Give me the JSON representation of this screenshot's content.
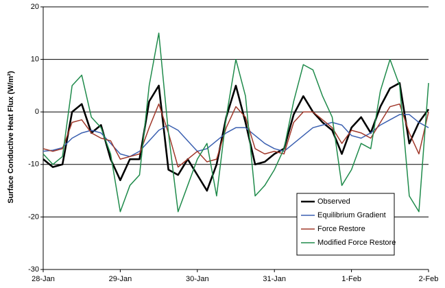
{
  "chart_data": {
    "type": "line",
    "y_label": "Surface Conductive Heat Flux (W/m²)",
    "x": [
      0,
      0.125,
      0.25,
      0.375,
      0.5,
      0.625,
      0.75,
      0.875,
      1,
      1.125,
      1.25,
      1.375,
      1.5,
      1.625,
      1.75,
      1.875,
      2,
      2.125,
      2.25,
      2.375,
      2.5,
      2.625,
      2.75,
      2.875,
      3,
      3.125,
      3.25,
      3.375,
      3.5,
      3.625,
      3.75,
      3.875,
      4,
      4.125,
      4.25,
      4.375,
      4.5,
      4.625,
      4.75,
      4.875,
      5
    ],
    "xlim": [
      0,
      5
    ],
    "xticks": [
      {
        "value": 0,
        "label": "28-Jan"
      },
      {
        "value": 1,
        "label": "29-Jan"
      },
      {
        "value": 2,
        "label": "30-Jan"
      },
      {
        "value": 3,
        "label": "31-Jan"
      },
      {
        "value": 4,
        "label": "1-Feb"
      },
      {
        "value": 5,
        "label": "2-Feb"
      }
    ],
    "ylim": [
      -30,
      20
    ],
    "yticks": [
      -30,
      -20,
      -10,
      0,
      10,
      20
    ],
    "grid": true,
    "legend": "lower right",
    "series": [
      {
        "name": "Observed",
        "color": "#000000",
        "width": 2.6,
        "values": [
          -9,
          -10.5,
          -10,
          0,
          1.5,
          -4,
          -2.5,
          -9,
          -13,
          -9,
          -9,
          2,
          5,
          -11,
          -12,
          -9,
          -12,
          -15,
          -10,
          -1,
          5,
          -2,
          -10,
          -9.5,
          -8,
          -7,
          -0.5,
          3,
          0,
          -2,
          -3.5,
          -8,
          -3,
          -1,
          -4,
          1,
          4.5,
          5.5,
          -6,
          -2,
          0.5
        ]
      },
      {
        "name": "Equilibrium Gradient",
        "color": "#3a5fb0",
        "width": 1.5,
        "values": [
          -7.5,
          -7.3,
          -6.8,
          -5,
          -4,
          -3.5,
          -4,
          -6,
          -8,
          -8.5,
          -7.5,
          -5.5,
          -3.5,
          -2.5,
          -3.5,
          -5.5,
          -7.5,
          -7,
          -5.5,
          -4,
          -3,
          -3,
          -4.5,
          -6,
          -7,
          -7.5,
          -6,
          -4.5,
          -3,
          -2.5,
          -2,
          -2.5,
          -4.5,
          -5,
          -4,
          -2.5,
          -1.5,
          -0.5,
          -0.5,
          -2,
          -3
        ]
      },
      {
        "name": "Force Restore",
        "color": "#a0382a",
        "width": 1.5,
        "values": [
          -7,
          -7.5,
          -7,
          -2,
          -1.5,
          -4,
          -5,
          -5.5,
          -9,
          -8.5,
          -8,
          -3,
          1.5,
          -4,
          -10.5,
          -9,
          -7.5,
          -9.5,
          -9,
          -3,
          1,
          -1,
          -7,
          -8,
          -7.5,
          -8,
          -2,
          0,
          0,
          -1.5,
          -3,
          -6,
          -3.5,
          -4,
          -5,
          -2,
          1,
          1.5,
          -4,
          -8,
          0
        ]
      },
      {
        "name": "Modified Force Restore",
        "color": "#1e8a4a",
        "width": 1.5,
        "values": [
          -8,
          -10,
          -8.5,
          5,
          7,
          -1,
          -3,
          -8,
          -19,
          -14,
          -12,
          5,
          15,
          -4,
          -19,
          -14,
          -9,
          -6,
          -16,
          -1,
          10,
          3,
          -16,
          -14,
          -11,
          -7,
          2,
          9,
          8,
          3,
          -1,
          -14,
          -11,
          -6,
          -7,
          4,
          10,
          5,
          -16,
          -19,
          5.5
        ]
      }
    ]
  }
}
